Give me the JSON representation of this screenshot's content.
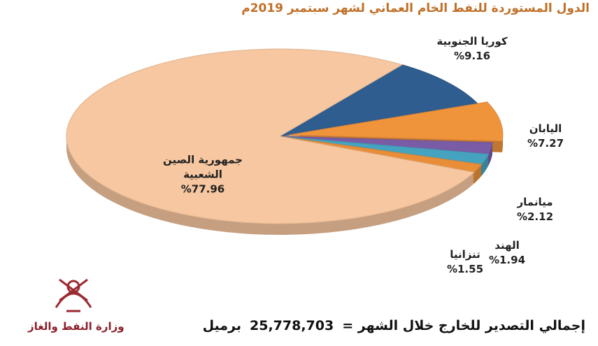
{
  "chart_data": {
    "type": "pie",
    "title": "الدول المستوردة للنفط الخام العماني لشهر سبتمبر 2019م",
    "categories": [
      "جمهورية الصين الشعبية",
      "كوريا الجنوبية",
      "اليابان",
      "ميانمار",
      "الهند",
      "تنزانيا"
    ],
    "values": [
      77.96,
      9.16,
      7.27,
      2.12,
      1.94,
      1.55
    ],
    "value_labels": [
      "%77.96",
      "%9.16",
      "%7.27",
      "%2.12",
      "%1.94",
      "%1.55"
    ],
    "colors": [
      "#f6c7a0",
      "#2f5d8f",
      "#f0943c",
      "#7a5ca6",
      "#46a3bf",
      "#e98e38"
    ]
  },
  "footer": {
    "label": "إجمالي التصدير للخارج خلال الشهر =",
    "total": "25,778,703",
    "unit": "برميل"
  },
  "logo": {
    "text": "وزارة النفط والغاز"
  }
}
